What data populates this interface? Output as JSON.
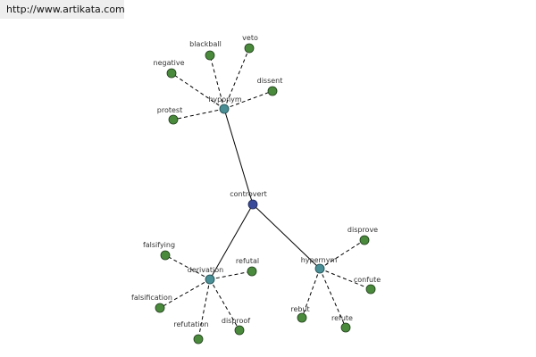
{
  "banner": {
    "url_text": "http://www.artikata.com"
  },
  "colors": {
    "center_node": "#3a4a9a",
    "hub_node": "#4a8f95",
    "leaf_node": "#4a8a3c",
    "node_stroke": "#1f3d1a",
    "edge": "#000000"
  },
  "graph": {
    "center": "controvert",
    "hubs": {
      "hyponym": "hyponym",
      "derivation": "derivation",
      "hypernym": "hypernym"
    },
    "leaves": {
      "blackball": "blackball",
      "veto": "veto",
      "negative": "negative",
      "dissent": "dissent",
      "protest": "protest",
      "falsifying": "falsifying",
      "refutal": "refutal",
      "falsification": "falsification",
      "refutation": "refutation",
      "disproof": "disproof",
      "disprove": "disprove",
      "confute": "confute",
      "rebut": "rebut",
      "refute": "refute"
    }
  }
}
